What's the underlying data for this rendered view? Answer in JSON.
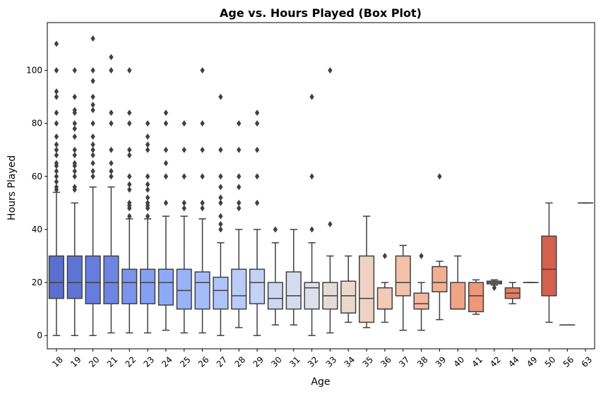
{
  "chart_data": {
    "type": "box",
    "title": "Age vs. Hours Played (Box Plot)",
    "xlabel": "Age",
    "ylabel": "Hours Played",
    "ylim": [
      -5,
      118
    ],
    "yticks": [
      0,
      20,
      40,
      60,
      80,
      100
    ],
    "grid": false,
    "legend": "none",
    "palette": "coolwarm",
    "categories": [
      "18",
      "19",
      "20",
      "21",
      "22",
      "23",
      "24",
      "25",
      "26",
      "27",
      "28",
      "29",
      "30",
      "31",
      "32",
      "33",
      "34",
      "35",
      "36",
      "37",
      "38",
      "39",
      "40",
      "41",
      "42",
      "44",
      "49",
      "50",
      "56",
      "63"
    ],
    "boxes": [
      {
        "age": "18",
        "color": "#5a6fd0",
        "min": 0,
        "q1": 14,
        "median": 20,
        "q3": 30,
        "max": 54,
        "outliers": [
          55,
          56,
          58,
          60,
          62,
          64,
          65,
          68,
          70,
          72,
          75,
          80,
          84,
          90,
          92,
          100,
          110
        ]
      },
      {
        "age": "19",
        "color": "#5f75d6",
        "min": 0,
        "q1": 14,
        "median": 20,
        "q3": 30,
        "max": 50,
        "outliers": [
          55,
          56,
          60,
          62,
          64,
          65,
          68,
          70,
          75,
          78,
          80,
          84,
          85,
          90,
          100
        ]
      },
      {
        "age": "20",
        "color": "#667dde",
        "min": 0,
        "q1": 12,
        "median": 20,
        "q3": 30,
        "max": 56,
        "outliers": [
          60,
          62,
          65,
          68,
          70,
          72,
          75,
          80,
          85,
          87,
          90,
          96,
          100,
          112
        ]
      },
      {
        "age": "21",
        "color": "#6e85e3",
        "min": 1,
        "q1": 12,
        "median": 20,
        "q3": 30,
        "max": 56,
        "outliers": [
          60,
          62,
          65,
          70,
          80,
          84,
          100,
          105
        ]
      },
      {
        "age": "22",
        "color": "#7b94ec",
        "min": 1,
        "q1": 12,
        "median": 20,
        "q3": 25,
        "max": 44,
        "outliers": [
          45,
          48,
          49,
          50,
          55,
          57,
          60,
          68,
          70,
          80,
          84,
          100
        ]
      },
      {
        "age": "23",
        "color": "#84a0f3",
        "min": 1,
        "q1": 12,
        "median": 20,
        "q3": 25,
        "max": 44,
        "outliers": [
          45,
          48,
          49,
          50,
          52,
          55,
          57,
          60,
          70,
          72,
          75,
          80
        ]
      },
      {
        "age": "24",
        "color": "#8eaaf7",
        "min": 2,
        "q1": 11.5,
        "median": 20,
        "q3": 25,
        "max": 45,
        "outliers": [
          50,
          60,
          65,
          70,
          80,
          84
        ]
      },
      {
        "age": "25",
        "color": "#99b3f9",
        "min": 1,
        "q1": 10,
        "median": 17,
        "q3": 25,
        "max": 45,
        "outliers": [
          48,
          50,
          60,
          70,
          80
        ]
      },
      {
        "age": "26",
        "color": "#a4bcfb",
        "min": 1,
        "q1": 10,
        "median": 20,
        "q3": 24,
        "max": 44,
        "outliers": [
          48,
          50,
          60,
          70,
          80,
          100
        ]
      },
      {
        "age": "27",
        "color": "#afc3fb",
        "min": 0,
        "q1": 10,
        "median": 17,
        "q3": 22,
        "max": 35,
        "outliers": [
          40,
          42,
          45,
          50,
          52,
          56,
          60,
          70,
          90
        ]
      },
      {
        "age": "28",
        "color": "#bacbfa",
        "min": 3,
        "q1": 10,
        "median": 15,
        "q3": 25,
        "max": 40,
        "outliers": [
          48,
          50,
          56,
          60,
          70,
          80
        ]
      },
      {
        "age": "29",
        "color": "#c4d2f8",
        "min": 0,
        "q1": 12,
        "median": 20,
        "q3": 25,
        "max": 40,
        "outliers": [
          50,
          60,
          70,
          80,
          84
        ]
      },
      {
        "age": "30",
        "color": "#cdd7f3",
        "min": 4,
        "q1": 10,
        "median": 14,
        "q3": 20,
        "max": 35,
        "outliers": [
          40
        ]
      },
      {
        "age": "31",
        "color": "#d6dcee",
        "min": 4,
        "q1": 10,
        "median": 15,
        "q3": 24,
        "max": 40,
        "outliers": []
      },
      {
        "age": "32",
        "color": "#dde0e9",
        "min": 0,
        "q1": 10,
        "median": 18,
        "q3": 20,
        "max": 35,
        "outliers": [
          40,
          60,
          90
        ]
      },
      {
        "age": "33",
        "color": "#e5dcd8",
        "min": 1,
        "q1": 10,
        "median": 15,
        "q3": 20,
        "max": 30,
        "outliers": [
          42,
          100
        ]
      },
      {
        "age": "34",
        "color": "#ebd8cd",
        "min": 5,
        "q1": 8.5,
        "median": 15,
        "q3": 20.5,
        "max": 30,
        "outliers": []
      },
      {
        "age": "35",
        "color": "#efd2c3",
        "min": 3,
        "q1": 5,
        "median": 14,
        "q3": 30,
        "max": 45,
        "outliers": []
      },
      {
        "age": "36",
        "color": "#f1cbb8",
        "min": 5,
        "q1": 10,
        "median": 10,
        "q3": 18,
        "max": 20,
        "outliers": [
          30
        ]
      },
      {
        "age": "37",
        "color": "#f2c2ab",
        "min": 2,
        "q1": 15,
        "median": 20,
        "q3": 30,
        "max": 34,
        "outliers": []
      },
      {
        "age": "38",
        "color": "#f3b89f",
        "min": 2,
        "q1": 10,
        "median": 12,
        "q3": 16,
        "max": 20,
        "outliers": [
          30
        ]
      },
      {
        "age": "39",
        "color": "#f3ae92",
        "min": 6,
        "q1": 16.5,
        "median": 20,
        "q3": 26,
        "max": 28,
        "outliers": [
          60
        ]
      },
      {
        "age": "40",
        "color": "#f1a386",
        "min": 10,
        "q1": 10,
        "median": 10,
        "q3": 20,
        "max": 30,
        "outliers": []
      },
      {
        "age": "41",
        "color": "#ee977a",
        "min": 8,
        "q1": 9,
        "median": 15,
        "q3": 20,
        "max": 21,
        "outliers": []
      },
      {
        "age": "42",
        "color": "#e98a6d",
        "min": 19,
        "q1": 19.5,
        "median": 20,
        "q3": 20.5,
        "max": 21,
        "outliers": [
          18
        ]
      },
      {
        "age": "44",
        "color": "#e47d62",
        "min": 12,
        "q1": 14,
        "median": 16,
        "q3": 18,
        "max": 20,
        "outliers": []
      },
      {
        "age": "49",
        "color": "#dd6f57",
        "min": 20,
        "q1": 20,
        "median": 20,
        "q3": 20,
        "max": 20,
        "outliers": []
      },
      {
        "age": "50",
        "color": "#d5604d",
        "min": 5,
        "q1": 15,
        "median": 25,
        "q3": 37.5,
        "max": 50,
        "outliers": []
      },
      {
        "age": "56",
        "color": "#cc5244",
        "min": 4,
        "q1": 4,
        "median": 4,
        "q3": 4,
        "max": 4,
        "outliers": []
      },
      {
        "age": "63",
        "color": "#c3433b",
        "min": 50,
        "q1": 50,
        "median": 50,
        "q3": 50,
        "max": 50,
        "outliers": []
      }
    ]
  }
}
